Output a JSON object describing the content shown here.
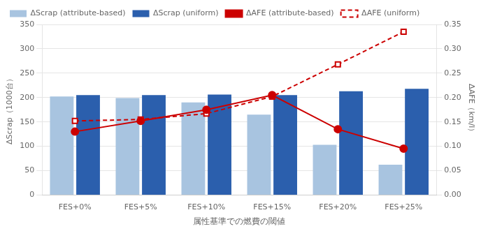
{
  "chart_data": {
    "type": "bar",
    "categories": [
      "FES+0%",
      "FES+5%",
      "FES+10%",
      "FES+15%",
      "FES+20%",
      "FES+25%"
    ],
    "xlabel": "属性基準での燃費の閾値",
    "ylabel": "ΔScrap（1000台）",
    "y2label": "ΔAFE（km/l）",
    "ylim": [
      0,
      350
    ],
    "yticks": [
      0,
      50,
      100,
      150,
      200,
      250,
      300,
      350
    ],
    "y2lim": [
      0,
      0.35
    ],
    "y2ticks": [
      {
        "value": 0,
        "label": "0.00"
      },
      {
        "value": 0.05,
        "label": "0.05"
      },
      {
        "value": 0.1,
        "label": "0.10"
      },
      {
        "value": 0.15,
        "label": "0.15"
      },
      {
        "value": 0.2,
        "label": "0.20"
      },
      {
        "value": 0.25,
        "label": "0.25"
      },
      {
        "value": 0.3,
        "label": "0.30"
      },
      {
        "value": 0.35,
        "label": "0.35"
      }
    ],
    "grid": true,
    "legend": "upper left",
    "series": [
      {
        "name": "ΔScrap (attribute-based)",
        "type": "bar",
        "color": "#a8c4e0",
        "values": [
          202,
          199,
          190,
          165,
          103,
          62
        ]
      },
      {
        "name": "ΔScrap (uniform)",
        "type": "bar",
        "color": "#2b5fad",
        "values": [
          205,
          205,
          206,
          205,
          213,
          218
        ]
      },
      {
        "name": "ΔAFE (attribute-based)",
        "type": "line",
        "axis": "y2",
        "color": "#cc0000",
        "marker": "circle",
        "line_style": "solid",
        "values": [
          0.13,
          0.152,
          0.175,
          0.205,
          0.135,
          0.095
        ]
      },
      {
        "name": "ΔAFE (uniform)",
        "type": "line",
        "axis": "y2",
        "color": "#cc0000",
        "marker": "square",
        "line_style": "dashed",
        "values": [
          0.152,
          0.155,
          0.167,
          0.202,
          0.268,
          0.335
        ]
      }
    ]
  }
}
